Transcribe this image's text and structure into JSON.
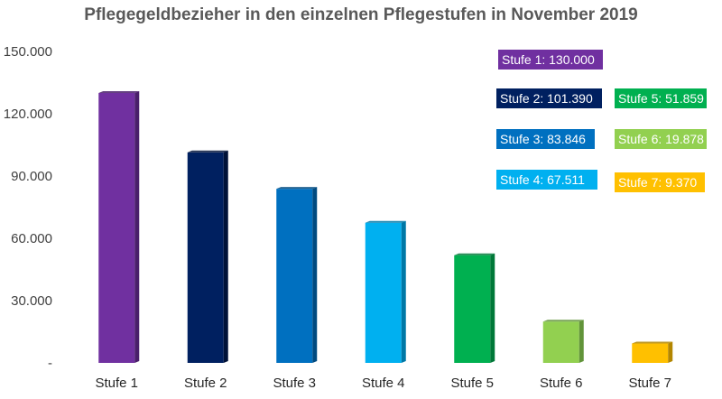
{
  "chart_data": {
    "type": "bar",
    "title": "Pflegegeldbezieher in den einzelnen Pflegestufen in November 2019",
    "categories": [
      "Stufe 1",
      "Stufe 2",
      "Stufe 3",
      "Stufe 4",
      "Stufe 5",
      "Stufe 6",
      "Stufe 7"
    ],
    "values": [
      130000,
      101390,
      83846,
      67511,
      51859,
      19878,
      9370
    ],
    "colors": [
      "#7030a0",
      "#002060",
      "#0070c0",
      "#00b0f0",
      "#00b050",
      "#92d050",
      "#ffc000"
    ],
    "side_colors": [
      "#4a1f6b",
      "#001238",
      "#004a80",
      "#0078a6",
      "#007838",
      "#62943a",
      "#b38600"
    ],
    "ylim": [
      0,
      150000
    ],
    "yticks": [
      {
        "value": 0,
        "label": "-"
      },
      {
        "value": 30000,
        "label": "30.000"
      },
      {
        "value": 60000,
        "label": "60.000"
      },
      {
        "value": 90000,
        "label": "90.000"
      },
      {
        "value": 120000,
        "label": "120.000"
      },
      {
        "value": 150000,
        "label": "150.000"
      }
    ],
    "grid": false,
    "annotations": [
      {
        "text": "Stufe 1:  130.000",
        "color": "#7030a0"
      },
      {
        "text": "Stufe 2:  101.390",
        "color": "#002060"
      },
      {
        "text": "Stufe 3:  83.846",
        "color": "#0070c0"
      },
      {
        "text": "Stufe 4:  67.511",
        "color": "#00b0f0"
      },
      {
        "text": "Stufe 5:  51.859",
        "color": "#00b050"
      },
      {
        "text": "Stufe 6:  19.878",
        "color": "#92d050"
      },
      {
        "text": "Stufe 7:  9.370",
        "color": "#ffc000"
      }
    ]
  }
}
